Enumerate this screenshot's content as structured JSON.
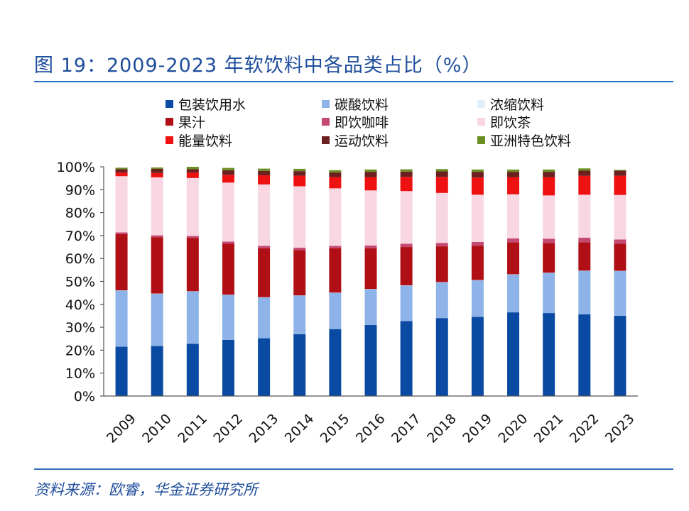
{
  "title": "图 19：2009-2023 年软饮料中各品类占比（%）",
  "source": "资料来源：欧睿，华金证券研究所",
  "chart_data": {
    "type": "bar",
    "stacked": true,
    "categories": [
      "2009",
      "2010",
      "2011",
      "2012",
      "2013",
      "2014",
      "2015",
      "2016",
      "2017",
      "2018",
      "2019",
      "2020",
      "2021",
      "2022",
      "2023"
    ],
    "ylim": [
      0,
      100
    ],
    "yticks": [
      "0%",
      "10%",
      "20%",
      "30%",
      "40%",
      "50%",
      "60%",
      "70%",
      "80%",
      "90%",
      "100%"
    ],
    "legend_position": "top",
    "series": [
      {
        "name": "包装饮用水",
        "color": "#0b4aa2",
        "values": [
          21.5,
          21.8,
          22.8,
          24.5,
          25.2,
          27.0,
          29.2,
          31.0,
          32.7,
          34.0,
          34.5,
          36.5,
          36.2,
          35.6,
          35.0
        ]
      },
      {
        "name": "碳酸饮料",
        "color": "#8db3e8",
        "values": [
          24.5,
          22.8,
          22.8,
          19.6,
          17.8,
          16.8,
          15.8,
          15.6,
          15.5,
          15.6,
          16.0,
          16.5,
          17.5,
          19.0,
          19.5
        ]
      },
      {
        "name": "浓缩饮料",
        "color": "#e3eefb",
        "values": [
          0.1,
          0.1,
          0.1,
          0.1,
          0.1,
          0.1,
          0.1,
          0.1,
          0.1,
          0.1,
          0.1,
          0.1,
          0.1,
          0.1,
          0.1
        ]
      },
      {
        "name": "果汁",
        "color": "#b01015",
        "values": [
          24.5,
          24.6,
          23.3,
          22.2,
          21.4,
          19.8,
          19.4,
          17.8,
          16.7,
          15.6,
          15.0,
          13.9,
          12.9,
          12.4,
          11.8
        ]
      },
      {
        "name": "即饮咖啡",
        "color": "#c44a72",
        "values": [
          0.8,
          0.8,
          0.8,
          1.0,
          1.0,
          1.0,
          1.0,
          1.2,
          1.4,
          1.5,
          1.6,
          1.8,
          1.9,
          2.0,
          1.9
        ]
      },
      {
        "name": "即饮茶",
        "color": "#f8d7e2",
        "values": [
          24.5,
          25.3,
          25.3,
          25.7,
          26.8,
          26.8,
          25.1,
          24.0,
          23.0,
          21.8,
          20.6,
          19.2,
          18.9,
          18.7,
          19.4
        ]
      },
      {
        "name": "能量饮料",
        "color": "#ee1111",
        "values": [
          1.6,
          1.9,
          2.4,
          3.4,
          4.0,
          4.6,
          4.9,
          5.8,
          6.2,
          7.0,
          7.5,
          7.5,
          8.0,
          8.3,
          8.4
        ]
      },
      {
        "name": "运动饮料",
        "color": "#6b2020",
        "values": [
          1.5,
          1.8,
          1.5,
          2.0,
          1.9,
          2.0,
          2.0,
          2.3,
          2.3,
          2.4,
          2.5,
          2.3,
          2.3,
          2.2,
          2.2
        ]
      },
      {
        "name": "亚洲特色饮料",
        "color": "#6b8e23",
        "values": [
          0.6,
          0.6,
          1.0,
          1.0,
          1.0,
          1.0,
          1.0,
          1.0,
          1.0,
          1.0,
          1.0,
          1.0,
          1.0,
          1.0,
          0.3
        ]
      }
    ]
  }
}
